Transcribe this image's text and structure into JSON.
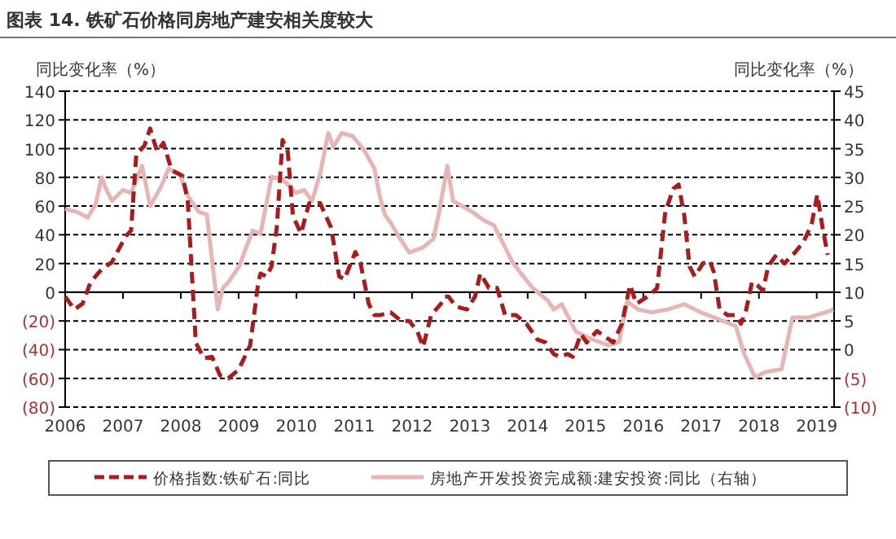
{
  "chart_data": {
    "type": "line",
    "title": "图表 14. 铁矿石价格同房地产建安相关度较大",
    "ylabel": "同比变化率（%）",
    "y2label": "同比变化率（%）",
    "grid": "y",
    "legend": "bottom",
    "xlim": [
      2006,
      2019.3
    ],
    "xticks": [
      2006,
      2007,
      2008,
      2009,
      2010,
      2011,
      2012,
      2013,
      2014,
      2015,
      2016,
      2017,
      2018,
      2019
    ],
    "ylim": [
      -80,
      140
    ],
    "yticks": [
      {
        "value": -80,
        "label": "(80)"
      },
      {
        "value": -60,
        "label": "(60)"
      },
      {
        "value": -40,
        "label": "(40)"
      },
      {
        "value": -20,
        "label": "(20)"
      },
      0,
      20,
      40,
      60,
      80,
      100,
      120,
      140
    ],
    "y2lim": [
      -10,
      45
    ],
    "y2ticks": [
      {
        "value": -10,
        "label": "(10)"
      },
      {
        "value": -5,
        "label": "(5)"
      },
      0,
      5,
      10,
      15,
      20,
      25,
      30,
      35,
      40,
      45
    ],
    "series": [
      {
        "name": "价格指数:铁矿石:同比",
        "color": "#a81c1c",
        "line_style": "dashed",
        "x": [
          2006.0,
          2006.16,
          2006.3,
          2006.44,
          2006.63,
          2006.81,
          2006.9,
          2007.05,
          2007.14,
          2007.23,
          2007.37,
          2007.47,
          2007.59,
          2007.7,
          2007.84,
          2008.03,
          2008.12,
          2008.26,
          2008.4,
          2008.54,
          2008.68,
          2008.82,
          2009.0,
          2009.2,
          2009.34,
          2009.38,
          2009.48,
          2009.57,
          2009.66,
          2009.76,
          2009.85,
          2009.94,
          2010.08,
          2010.22,
          2010.41,
          2010.6,
          2010.74,
          2010.83,
          2011.02,
          2011.11,
          2011.25,
          2011.35,
          2011.44,
          2011.63,
          2011.81,
          2011.95,
          2012.09,
          2012.19,
          2012.33,
          2012.5,
          2012.57,
          2012.63,
          2012.76,
          2012.95,
          2013.09,
          2013.18,
          2013.33,
          2013.47,
          2013.61,
          2013.8,
          2013.98,
          2014.17,
          2014.31,
          2014.45,
          2014.55,
          2014.69,
          2014.78,
          2014.92,
          2015.02,
          2015.2,
          2015.34,
          2015.48,
          2015.63,
          2015.77,
          2015.88,
          2016.0,
          2016.14,
          2016.24,
          2016.38,
          2016.52,
          2016.61,
          2016.71,
          2016.8,
          2016.89,
          2017.03,
          2017.15,
          2017.22,
          2017.32,
          2017.46,
          2017.6,
          2017.69,
          2017.78,
          2017.88,
          2017.97,
          2018.07,
          2018.16,
          2018.3,
          2018.44,
          2018.63,
          2018.77,
          2018.91,
          2019.01,
          2019.1,
          2019.19
        ],
        "values": [
          -3,
          -12,
          -8,
          7,
          16,
          21,
          28,
          39,
          43,
          96,
          102,
          114,
          98,
          104,
          85,
          81,
          64,
          -35,
          -46,
          -45,
          -58,
          -60,
          -54,
          -37,
          7,
          13,
          11,
          18,
          45,
          106,
          98,
          53,
          41,
          62,
          62,
          45,
          11,
          9,
          28,
          20,
          -8,
          -16,
          -16,
          -14,
          -20,
          -20,
          -27,
          -38,
          -16,
          -8,
          -3,
          -3,
          -10,
          -12,
          -3,
          13,
          3,
          3,
          -16,
          -16,
          -22,
          -33,
          -35,
          -43,
          -45,
          -43,
          -45,
          -29,
          -35,
          -27,
          -31,
          -35,
          -22,
          5,
          -8,
          -5,
          -1,
          3,
          56,
          72,
          75,
          53,
          18,
          11,
          20,
          22,
          14,
          -12,
          -16,
          -16,
          -22,
          -12,
          7,
          5,
          1,
          18,
          26,
          20,
          28,
          35,
          47,
          68,
          45,
          26
        ]
      },
      {
        "name": "房地产开发投资完成额:建安投资:同比（右轴）",
        "color": "#e8b4b4",
        "line_style": "solid",
        "axis": "y2",
        "x": [
          2006.0,
          2006.2,
          2006.39,
          2006.53,
          2006.63,
          2006.72,
          2006.81,
          2007.0,
          2007.14,
          2007.33,
          2007.47,
          2007.65,
          2007.79,
          2007.98,
          2008.12,
          2008.31,
          2008.45,
          2008.64,
          2008.73,
          2008.82,
          2009.01,
          2009.24,
          2009.38,
          2009.57,
          2009.76,
          2009.99,
          2010.13,
          2010.27,
          2010.41,
          2010.55,
          2010.64,
          2010.78,
          2010.97,
          2011.16,
          2011.35,
          2011.44,
          2011.53,
          2011.63,
          2011.77,
          2011.95,
          2012.19,
          2012.37,
          2012.47,
          2012.61,
          2012.71,
          2013.04,
          2013.23,
          2013.42,
          2013.75,
          2014.08,
          2014.36,
          2014.45,
          2014.59,
          2014.83,
          2015.11,
          2015.39,
          2015.58,
          2015.72,
          2015.91,
          2016.14,
          2016.42,
          2016.71,
          2016.99,
          2017.36,
          2017.6,
          2017.74,
          2017.93,
          2018.11,
          2018.39,
          2018.58,
          2018.86,
          2019.15,
          2019.29
        ],
        "values": [
          24.5,
          24,
          23,
          25.4,
          30,
          27.7,
          25.9,
          27.8,
          27.3,
          32,
          25,
          28.2,
          31.5,
          30.6,
          26.8,
          24,
          23.5,
          7,
          10.8,
          11.7,
          14.5,
          20.7,
          20.2,
          30.1,
          29.7,
          27.3,
          27.8,
          25.9,
          30.6,
          37.7,
          35.3,
          37.7,
          37.2,
          34.9,
          31.5,
          26.8,
          23.5,
          22.1,
          19.7,
          16.9,
          17.8,
          19.3,
          24,
          32,
          25.9,
          24,
          22.6,
          21.6,
          15,
          10.8,
          8.4,
          7,
          7.9,
          3.2,
          1.8,
          0.8,
          1.3,
          8.4,
          7,
          6.5,
          7,
          7.9,
          6.5,
          5.1,
          4.1,
          -0.6,
          -4.8,
          -3.9,
          -3.4,
          5.6,
          5.6,
          6.5,
          7
        ]
      }
    ]
  }
}
